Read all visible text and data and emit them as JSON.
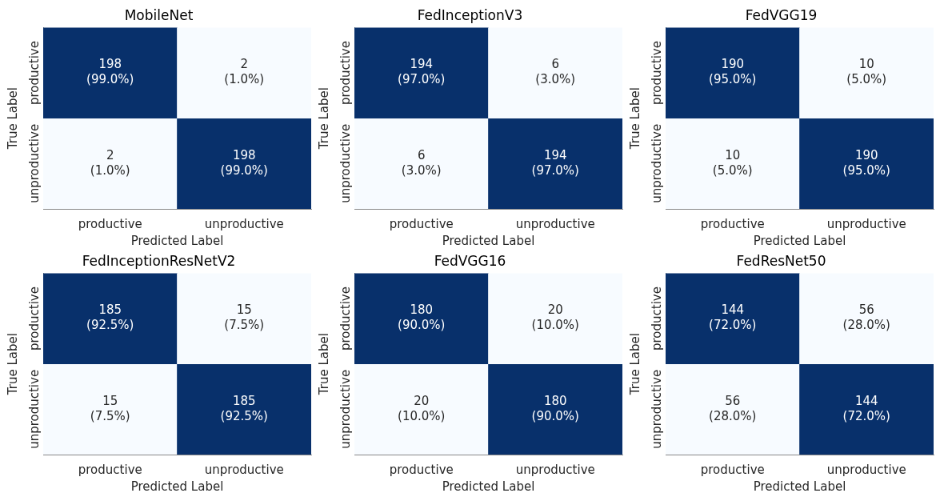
{
  "chart_data": [
    {
      "type": "heatmap",
      "title": "MobileNet",
      "xlabel": "Predicted Label",
      "ylabel": "True Label",
      "categories": [
        "productive",
        "unproductive"
      ],
      "y_categories": [
        "productive",
        "unproductive"
      ],
      "cells": [
        [
          198,
          2
        ],
        [
          2,
          198
        ]
      ],
      "data_labels": true,
      "annotations": [
        "(99.0%)",
        "(1.0%)",
        "(1.0%)",
        "(99.0%)"
      ]
    },
    {
      "type": "heatmap",
      "title": "FedInceptionV3",
      "xlabel": "Predicted Label",
      "ylabel": "True Label",
      "categories": [
        "productive",
        "unproductive"
      ],
      "y_categories": [
        "productive",
        "unproductive"
      ],
      "cells": [
        [
          194,
          6
        ],
        [
          6,
          194
        ]
      ],
      "data_labels": true,
      "annotations": [
        "(97.0%)",
        "(3.0%)",
        "(3.0%)",
        "(97.0%)"
      ]
    },
    {
      "type": "heatmap",
      "title": "FedVGG19",
      "xlabel": "Predicted Label",
      "ylabel": "True Label",
      "categories": [
        "productive",
        "unproductive"
      ],
      "y_categories": [
        "productive",
        "unproductive"
      ],
      "cells": [
        [
          190,
          10
        ],
        [
          10,
          190
        ]
      ],
      "data_labels": true,
      "annotations": [
        "(95.0%)",
        "(5.0%)",
        "(5.0%)",
        "(95.0%)"
      ]
    },
    {
      "type": "heatmap",
      "title": "FedInceptionResNetV2",
      "xlabel": "Predicted Label",
      "ylabel": "True Label",
      "categories": [
        "productive",
        "unproductive"
      ],
      "y_categories": [
        "productive",
        "unproductive"
      ],
      "cells": [
        [
          185,
          15
        ],
        [
          15,
          185
        ]
      ],
      "data_labels": true,
      "annotations": [
        "(92.5%)",
        "(7.5%)",
        "(7.5%)",
        "(92.5%)"
      ]
    },
    {
      "type": "heatmap",
      "title": "FedVGG16",
      "xlabel": "Predicted Label",
      "ylabel": "True Label",
      "categories": [
        "productive",
        "unproductive"
      ],
      "y_categories": [
        "productive",
        "unproductive"
      ],
      "cells": [
        [
          180,
          20
        ],
        [
          20,
          180
        ]
      ],
      "data_labels": true,
      "annotations": [
        "(90.0%)",
        "(10.0%)",
        "(10.0%)",
        "(90.0%)"
      ]
    },
    {
      "type": "heatmap",
      "title": "FedResNet50",
      "xlabel": "Predicted Label",
      "ylabel": "True Label",
      "categories": [
        "productive",
        "unproductive"
      ],
      "y_categories": [
        "productive",
        "unproductive"
      ],
      "cells": [
        [
          144,
          56
        ],
        [
          56,
          144
        ]
      ],
      "data_labels": true,
      "annotations": [
        "(72.0%)",
        "(28.0%)",
        "(28.0%)",
        "(72.0%)"
      ]
    }
  ]
}
